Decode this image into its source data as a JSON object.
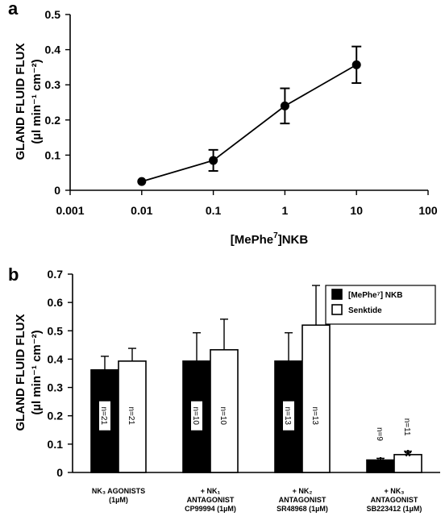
{
  "chart_data": [
    {
      "type": "line",
      "panel_label": "a",
      "xlabel_main": "[MePhe",
      "xlabel_sup": "7",
      "xlabel_tail": "]NKB",
      "ylabel_line1": "GLAND FLUID FLUX",
      "ylabel_line2": "(µl min⁻¹ cm⁻²)",
      "xscale": "log",
      "xlim": [
        0.001,
        100
      ],
      "ylim": [
        0,
        0.5
      ],
      "x_ticks": [
        "0.001",
        "0.01",
        "0.1",
        "1",
        "10",
        "100"
      ],
      "y_ticks": [
        "0",
        "0.1",
        "0.2",
        "0.3",
        "0.4",
        "0.5"
      ],
      "x": [
        0.01,
        0.1,
        1,
        10
      ],
      "y": [
        0.025,
        0.085,
        0.24,
        0.357
      ],
      "error": [
        0.0,
        0.03,
        0.05,
        0.052
      ],
      "grid": false
    },
    {
      "type": "bar",
      "panel_label": "b",
      "ylabel_line1": "GLAND FLUID FLUX",
      "ylabel_line2": "(µl min⁻¹ cm⁻²)",
      "ylim": [
        0,
        0.7
      ],
      "y_ticks": [
        "0",
        "0.1",
        "0.2",
        "0.3",
        "0.4",
        "0.5",
        "0.6",
        "0.7"
      ],
      "legend_position": "top-right",
      "categories": [
        {
          "lines": [
            "NK₃ AGONISTS",
            "(1µM)"
          ]
        },
        {
          "lines": [
            "+ NK₁",
            "ANTAGONIST",
            "CP99994 (1µM)"
          ]
        },
        {
          "lines": [
            "+ NK₂",
            "ANTAGONIST",
            "SR48968 (1µM)"
          ]
        },
        {
          "lines": [
            "+ NK₃",
            "ANTAGONIST",
            "SB223412 (1µM)"
          ]
        }
      ],
      "series": [
        {
          "name": "[MePhe⁷] NKB",
          "color": "#000000",
          "values": [
            0.362,
            0.393,
            0.393,
            0.044
          ],
          "errors": [
            0.048,
            0.1,
            0.1,
            0.006
          ],
          "n_labels": [
            "n=21",
            "n=10",
            "n=13",
            "n=9"
          ],
          "significant": [
            false,
            false,
            false,
            true
          ]
        },
        {
          "name": "Senktide",
          "color": "#ffffff",
          "values": [
            0.393,
            0.433,
            0.52,
            0.063
          ],
          "errors": [
            0.045,
            0.108,
            0.14,
            0.012
          ],
          "n_labels": [
            "n=21",
            "n=10",
            "n=13",
            "n=11"
          ],
          "significant": [
            false,
            false,
            false,
            true
          ]
        }
      ],
      "significance_symbol": "*",
      "grid": false
    }
  ]
}
